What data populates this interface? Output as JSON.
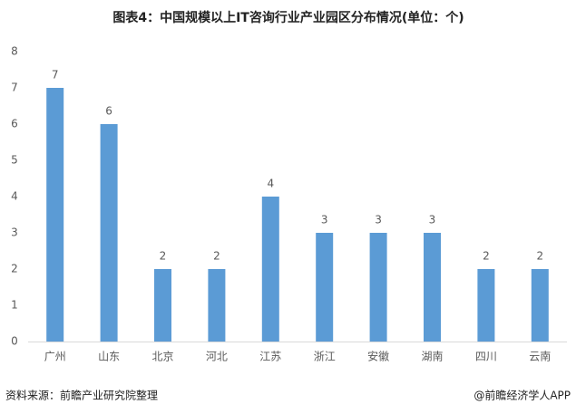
{
  "chart_data": {
    "type": "bar",
    "title": "图表4：中国规模以上IT咨询行业产业园区分布情况(单位：个)",
    "categories": [
      "广州",
      "山东",
      "北京",
      "河北",
      "江苏",
      "浙江",
      "安徽",
      "湖南",
      "四川",
      "云南"
    ],
    "values": [
      7,
      6,
      2,
      2,
      4,
      3,
      3,
      3,
      2,
      2
    ],
    "color": "#5b9bd5",
    "ylim": [
      0,
      8
    ],
    "yticks": [
      0,
      1,
      2,
      3,
      4,
      5,
      6,
      7,
      8
    ],
    "grid": false,
    "source": "资料来源：前瞻产业研究院整理",
    "credit": "@前瞻经济学人APP"
  }
}
